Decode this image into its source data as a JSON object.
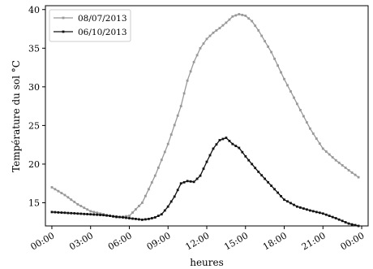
{
  "chart_data": {
    "type": "line",
    "title": "",
    "xlabel": "heures",
    "ylabel": "Température du sol °C",
    "xlim": [
      "00:00",
      "00:00"
    ],
    "ylim": [
      12,
      40.5
    ],
    "xticks": [
      "00:00",
      "03:00",
      "06:00",
      "09:00",
      "12:00",
      "15:00",
      "18:00",
      "21:00",
      "00:00"
    ],
    "yticks": [
      "15",
      "20",
      "25",
      "30",
      "35",
      "40"
    ],
    "grid": false,
    "legend": "top-left",
    "series": [
      {
        "name": "08/07/2013",
        "color": "#999999",
        "marker": "square",
        "x": [
          "00:00",
          "01:00",
          "02:00",
          "03:00",
          "04:00",
          "05:00",
          "06:00",
          "07:00",
          "08:00",
          "09:00",
          "10:00",
          "10:30",
          "11:00",
          "11:30",
          "12:00",
          "12:30",
          "13:00",
          "13:30",
          "14:00",
          "14:30",
          "15:00",
          "15:30",
          "16:00",
          "17:00",
          "18:00",
          "19:00",
          "20:00",
          "21:00",
          "22:00",
          "23:00",
          "23:45"
        ],
        "values": [
          17.0,
          16.0,
          14.8,
          13.9,
          13.5,
          13.1,
          13.3,
          15.0,
          18.5,
          22.6,
          27.5,
          30.8,
          33.2,
          35.0,
          36.2,
          37.0,
          37.6,
          38.3,
          39.1,
          39.4,
          39.2,
          38.5,
          37.3,
          34.5,
          31.0,
          27.8,
          24.6,
          22.0,
          20.5,
          19.2,
          18.3
        ]
      },
      {
        "name": "06/10/2013",
        "color": "#111111",
        "marker": "square",
        "x": [
          "00:00",
          "01:00",
          "02:00",
          "03:00",
          "04:00",
          "05:00",
          "06:00",
          "06:30",
          "07:00",
          "07:30",
          "08:00",
          "08:30",
          "09:00",
          "09:30",
          "10:00",
          "10:30",
          "11:00",
          "11:30",
          "12:00",
          "12:30",
          "13:00",
          "13:30",
          "14:00",
          "14:30",
          "15:00",
          "16:00",
          "17:00",
          "18:00",
          "19:00",
          "20:00",
          "21:00",
          "22:00",
          "23:00",
          "23:45"
        ],
        "values": [
          13.8,
          13.7,
          13.6,
          13.5,
          13.4,
          13.2,
          13.0,
          12.9,
          12.8,
          12.9,
          13.1,
          13.5,
          14.5,
          15.8,
          17.5,
          17.8,
          17.7,
          18.5,
          20.3,
          22.0,
          23.1,
          23.4,
          22.6,
          22.1,
          21.0,
          19.0,
          17.2,
          15.4,
          14.5,
          14.0,
          13.6,
          13.0,
          12.3,
          12.0
        ]
      }
    ]
  }
}
